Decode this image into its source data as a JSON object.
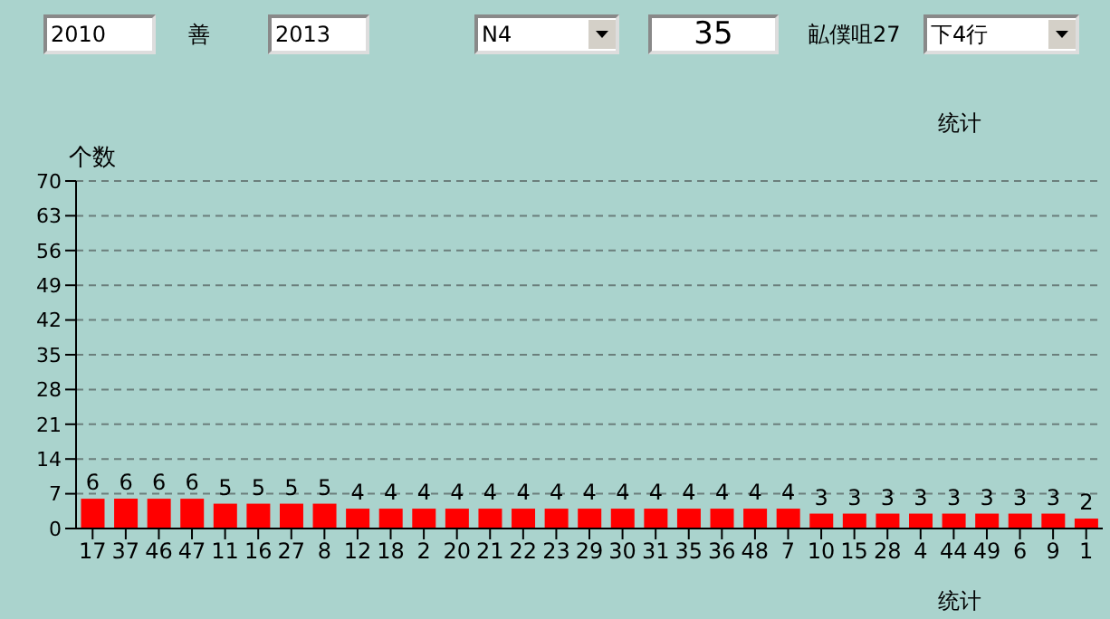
{
  "chart_data": {
    "type": "bar",
    "title": "统计",
    "xlabel": "统计",
    "ylabel": "个数",
    "annotations": [
      "2010",
      "善",
      "2013",
      "N4",
      "35",
      "畆僕咀27",
      "下4行"
    ],
    "categories": [
      "17",
      "37",
      "46",
      "47",
      "11",
      "16",
      "27",
      "8",
      "12",
      "18",
      "2",
      "20",
      "21",
      "22",
      "23",
      "29",
      "30",
      "31",
      "35",
      "36",
      "48",
      "7",
      "10",
      "15",
      "28",
      "4",
      "44",
      "49",
      "6",
      "9",
      "1"
    ],
    "values": [
      6,
      6,
      6,
      6,
      5,
      5,
      5,
      5,
      4,
      4,
      4,
      4,
      4,
      4,
      4,
      4,
      4,
      4,
      4,
      4,
      4,
      4,
      3,
      3,
      3,
      3,
      3,
      3,
      3,
      3,
      2
    ],
    "color": "#ff0000",
    "ylim": [
      0,
      70
    ],
    "yticks": [
      0,
      7,
      14,
      21,
      28,
      35,
      42,
      49,
      56,
      63,
      70
    ],
    "grid": "y",
    "data_labels": true,
    "legend": false
  }
}
